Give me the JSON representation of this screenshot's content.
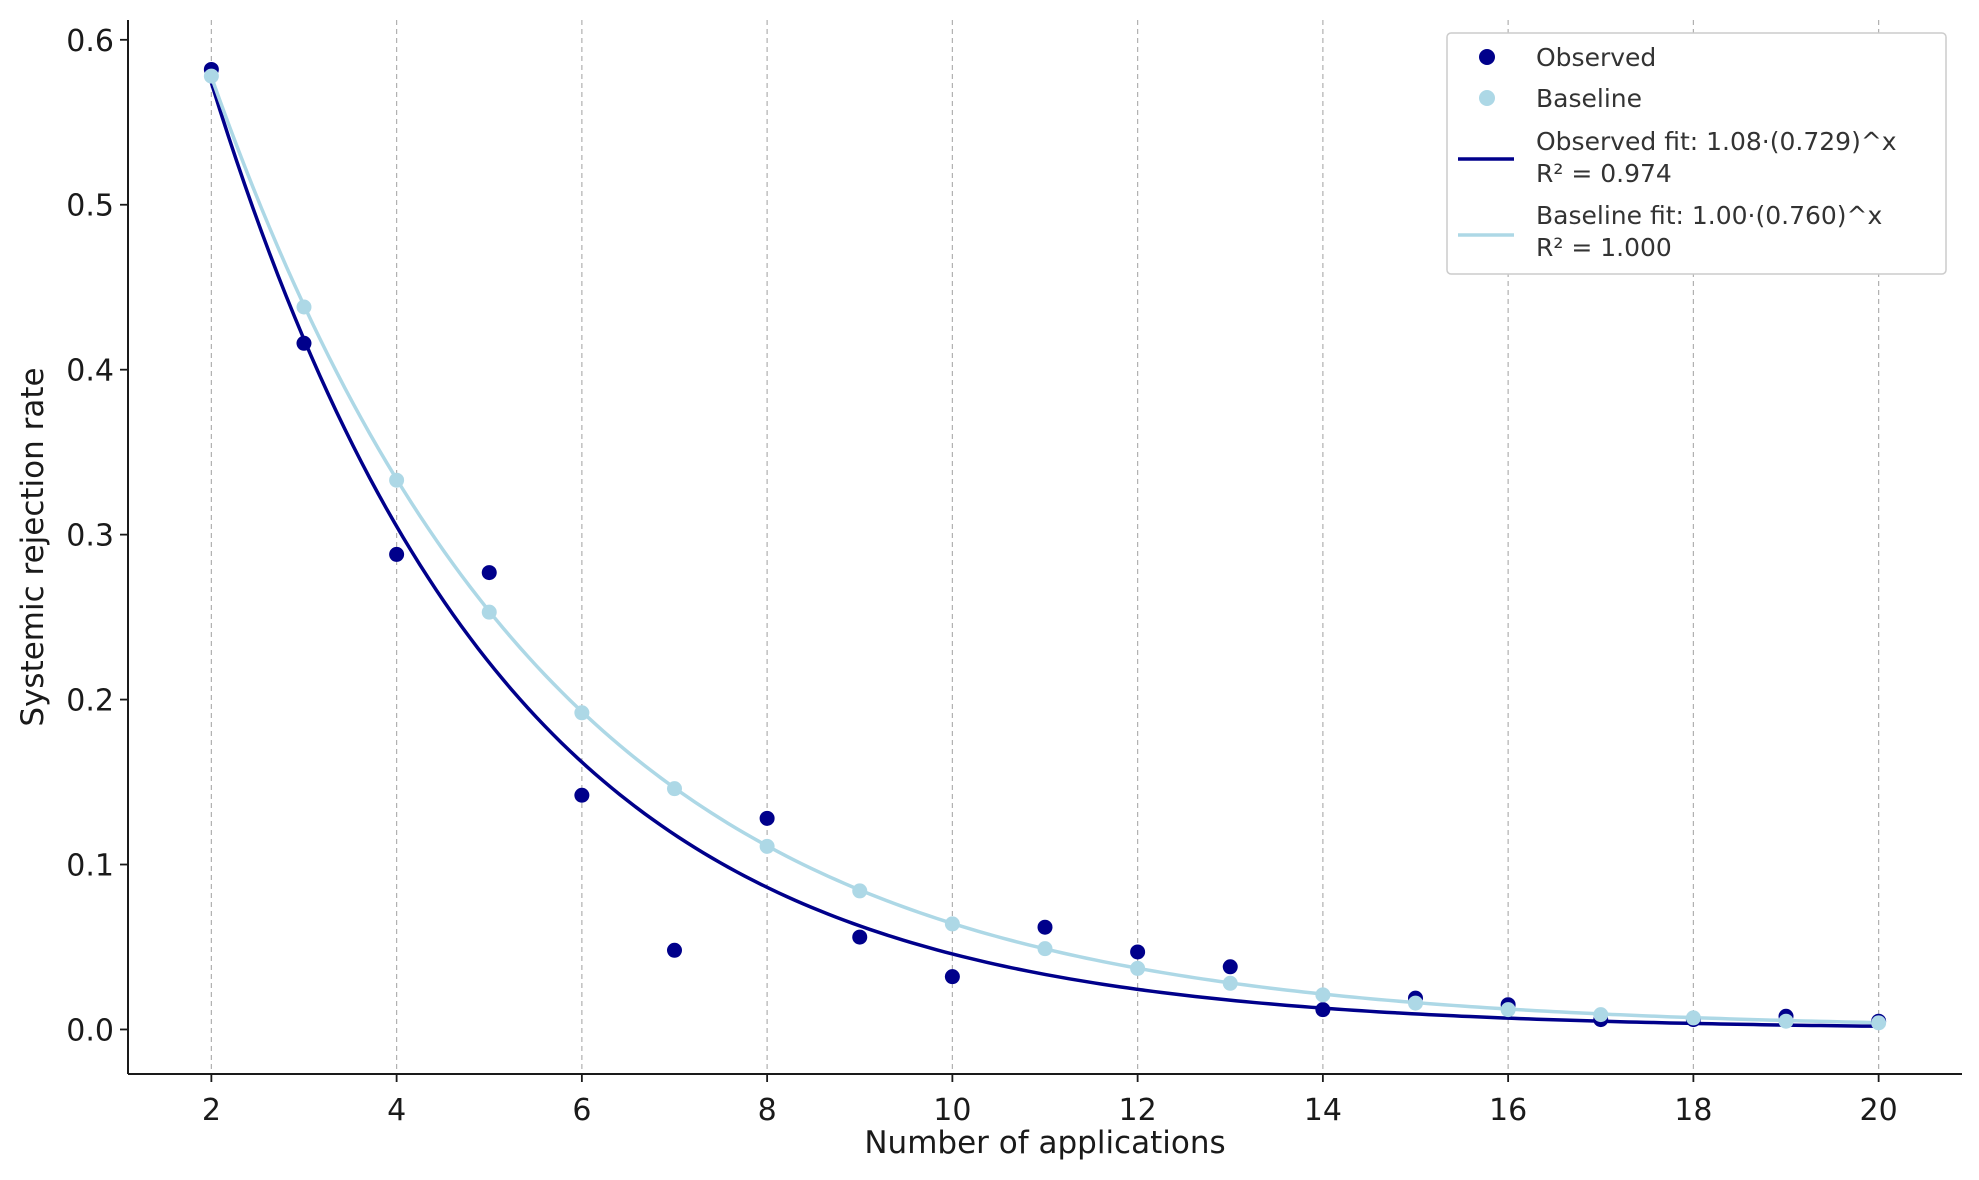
{
  "chart_data": {
    "type": "scatter",
    "title": "",
    "xlabel": "Number of applications",
    "ylabel": "Systemic rejection rate",
    "xlim": [
      1.1,
      20.9
    ],
    "ylim": [
      -0.027,
      0.612
    ],
    "x_ticks": [
      2,
      4,
      6,
      8,
      10,
      12,
      14,
      16,
      18,
      20
    ],
    "y_ticks": [
      0.0,
      0.1,
      0.2,
      0.3,
      0.4,
      0.5,
      0.6
    ],
    "x_tick_labels": [
      "2",
      "4",
      "6",
      "8",
      "10",
      "12",
      "14",
      "16",
      "18",
      "20"
    ],
    "y_tick_labels": [
      "0.0",
      "0.1",
      "0.2",
      "0.3",
      "0.4",
      "0.5",
      "0.6"
    ],
    "grid": "vertical dashed",
    "legend_position": "top-right",
    "x": [
      2,
      3,
      4,
      5,
      6,
      7,
      8,
      9,
      10,
      11,
      12,
      13,
      14,
      15,
      16,
      17,
      18,
      19,
      20
    ],
    "series": [
      {
        "name": "Observed",
        "kind": "scatter",
        "color": "#00008b",
        "values": [
          0.582,
          0.416,
          0.288,
          0.277,
          0.142,
          0.048,
          0.128,
          0.056,
          0.032,
          0.062,
          0.047,
          0.038,
          0.012,
          0.019,
          0.015,
          0.006,
          0.006,
          0.008,
          0.005
        ]
      },
      {
        "name": "Baseline",
        "kind": "scatter",
        "color": "#add8e6",
        "values": [
          0.578,
          0.438,
          0.333,
          0.253,
          0.192,
          0.146,
          0.111,
          0.084,
          0.064,
          0.049,
          0.037,
          0.028,
          0.021,
          0.016,
          0.012,
          0.009,
          0.007,
          0.005,
          0.004
        ]
      }
    ],
    "fits": [
      {
        "legend_line1": "Observed fit: 1.08·(0.729)^x",
        "legend_line2": "R² = 0.974",
        "color": "#00008b",
        "a": 1.08,
        "b": 0.729,
        "x_range": [
          2,
          20
        ]
      },
      {
        "legend_line1": "Baseline fit: 1.00·(0.760)^x",
        "legend_line2": "R² = 1.000",
        "color": "#add8e6",
        "a": 1.0,
        "b": 0.76,
        "x_range": [
          2,
          20
        ]
      }
    ]
  }
}
